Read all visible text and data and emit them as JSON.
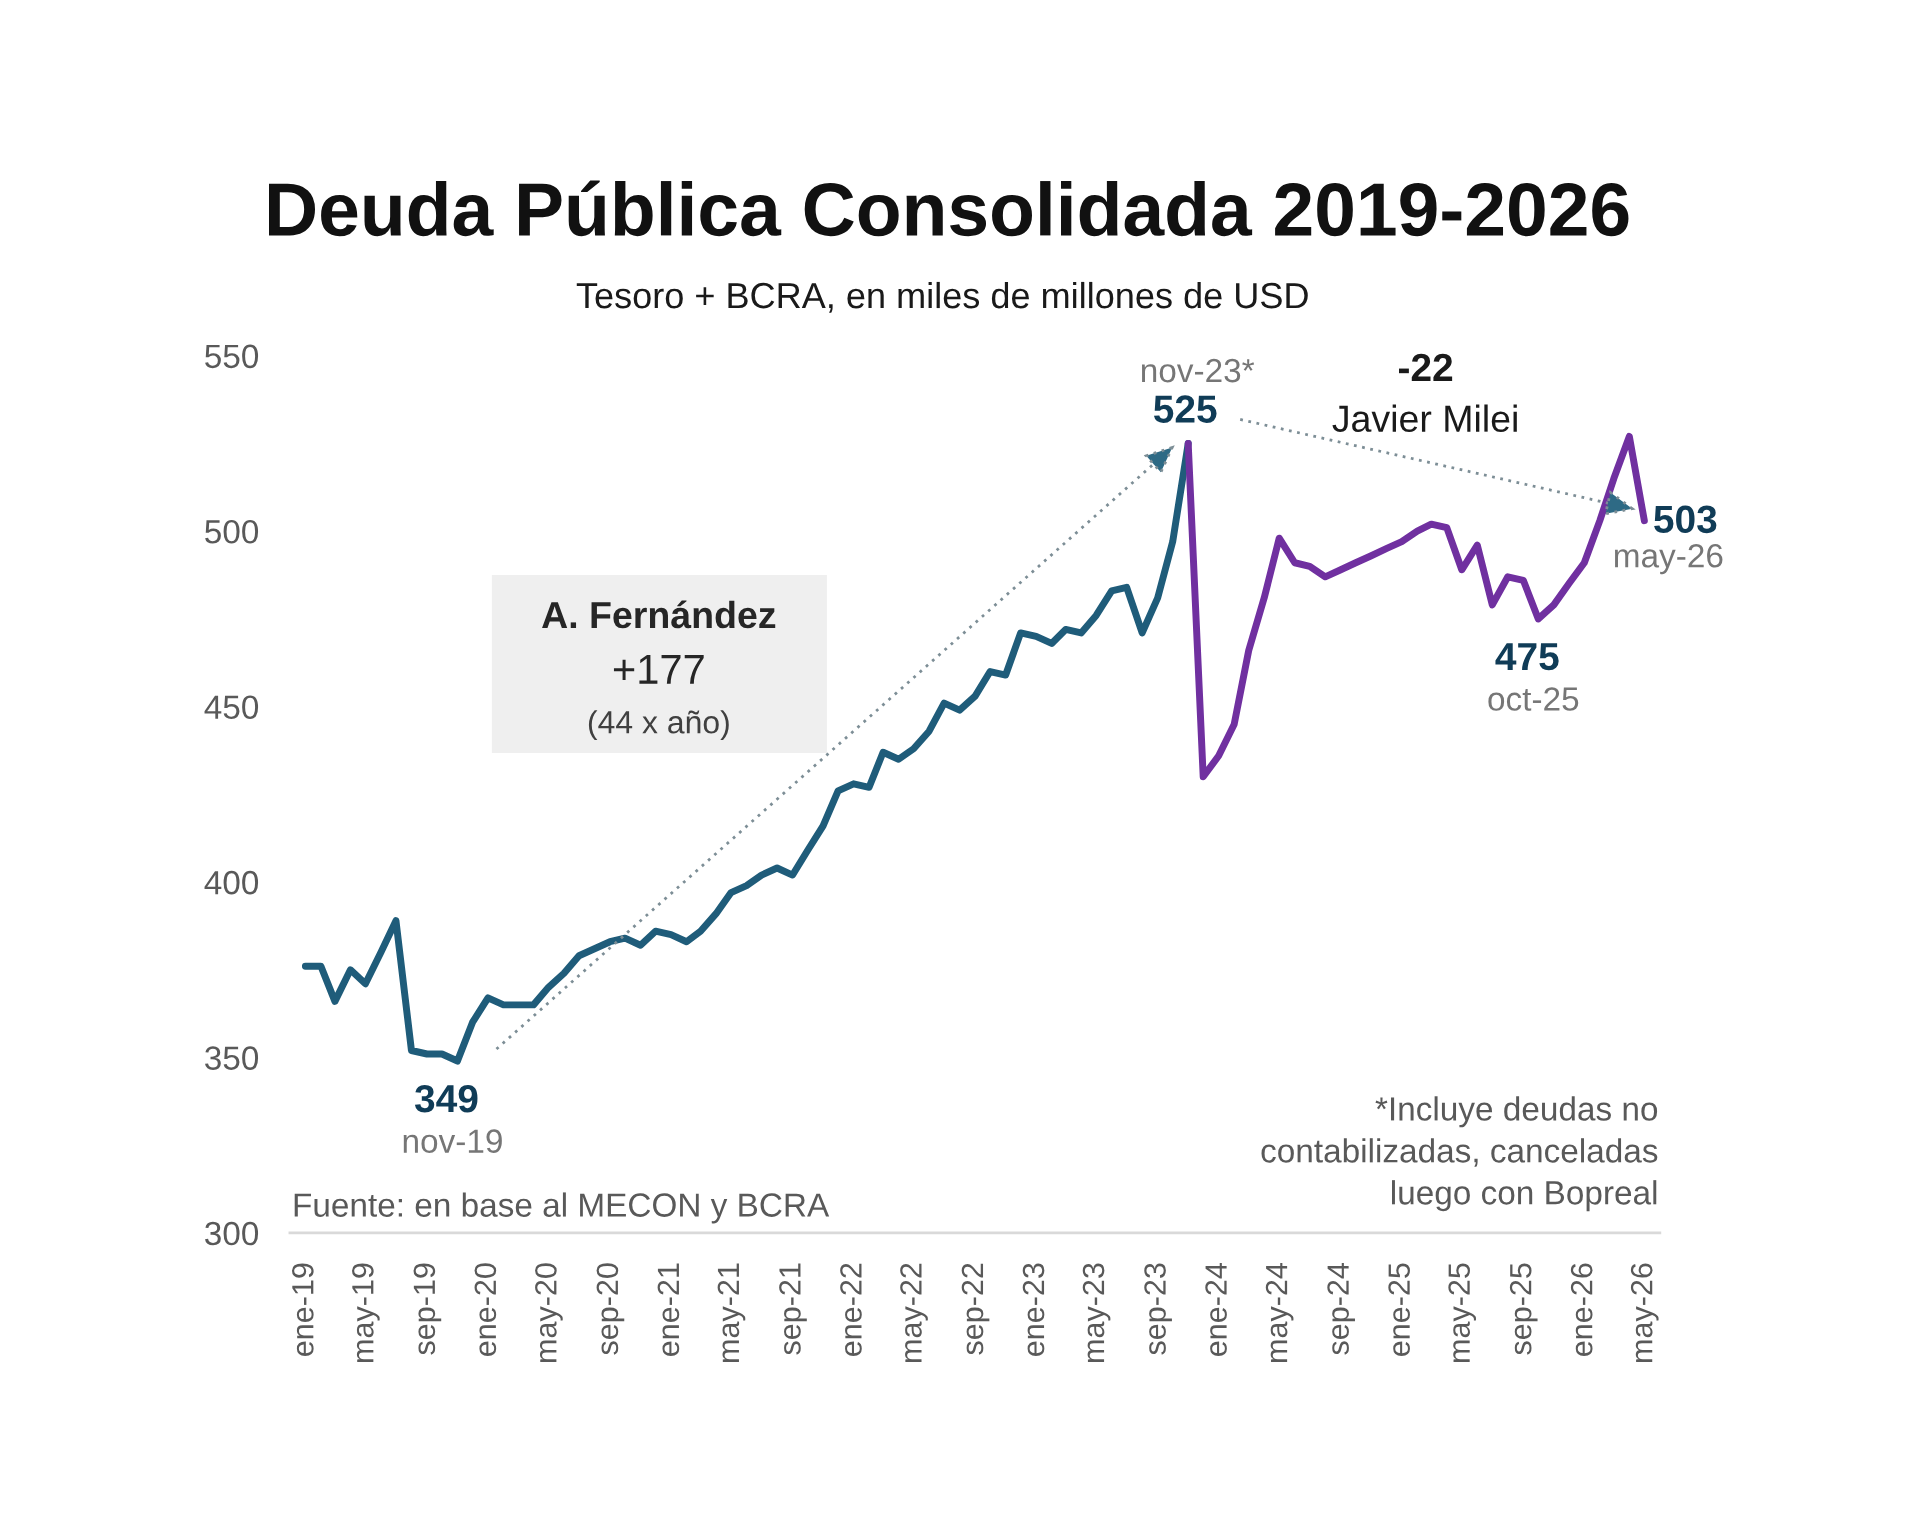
{
  "chart_data": {
    "type": "line",
    "title": "Deuda Pública Consolidada 2019-2026",
    "subtitle": "Tesoro + BCRA, en miles de millones de USD",
    "xlim": [
      "2018-12",
      "2026-06"
    ],
    "xticks": [
      {
        "value": "2019-01",
        "label": "ene-19"
      },
      {
        "value": "2019-05",
        "label": "may-19"
      },
      {
        "value": "2019-09",
        "label": "sep-19"
      },
      {
        "value": "2020-01",
        "label": "ene-20"
      },
      {
        "value": "2020-05",
        "label": "may-20"
      },
      {
        "value": "2020-09",
        "label": "sep-20"
      },
      {
        "value": "2021-01",
        "label": "ene-21"
      },
      {
        "value": "2021-05",
        "label": "may-21"
      },
      {
        "value": "2021-09",
        "label": "sep-21"
      },
      {
        "value": "2022-01",
        "label": "ene-22"
      },
      {
        "value": "2022-05",
        "label": "may-22"
      },
      {
        "value": "2022-09",
        "label": "sep-22"
      },
      {
        "value": "2023-01",
        "label": "ene-23"
      },
      {
        "value": "2023-05",
        "label": "may-23"
      },
      {
        "value": "2023-09",
        "label": "sep-23"
      },
      {
        "value": "2024-01",
        "label": "ene-24"
      },
      {
        "value": "2024-05",
        "label": "may-24"
      },
      {
        "value": "2024-09",
        "label": "sep-24"
      },
      {
        "value": "2025-01",
        "label": "ene-25"
      },
      {
        "value": "2025-05",
        "label": "may-25"
      },
      {
        "value": "2025-09",
        "label": "sep-25"
      },
      {
        "value": "2026-01",
        "label": "ene-26"
      },
      {
        "value": "2026-05",
        "label": "may-26"
      }
    ],
    "ylim": [
      300,
      550
    ],
    "yticks": [
      300,
      350,
      400,
      450,
      500,
      550
    ],
    "series": [
      {
        "color": "#1f5c7a",
        "x": [
          "2019-01",
          "2019-02",
          "2019-03",
          "2019-04",
          "2019-05",
          "2019-06",
          "2019-07",
          "2019-08",
          "2019-09",
          "2019-10",
          "2019-11",
          "2019-12",
          "2020-01",
          "2020-02",
          "2020-03",
          "2020-04",
          "2020-05",
          "2020-06",
          "2020-07",
          "2020-08",
          "2020-09",
          "2020-10",
          "2020-11",
          "2020-12",
          "2021-01",
          "2021-02",
          "2021-03",
          "2021-04",
          "2021-05",
          "2021-06",
          "2021-07",
          "2021-08",
          "2021-09",
          "2021-10",
          "2021-11",
          "2021-12",
          "2022-01",
          "2022-02",
          "2022-03",
          "2022-04",
          "2022-05",
          "2022-06",
          "2022-07",
          "2022-08",
          "2022-09",
          "2022-10",
          "2022-11",
          "2022-12",
          "2023-01",
          "2023-02",
          "2023-03",
          "2023-04",
          "2023-05",
          "2023-06",
          "2023-07",
          "2023-08",
          "2023-09",
          "2023-10",
          "2023-11"
        ],
        "values": [
          376,
          376,
          366,
          375,
          371,
          380,
          389,
          352,
          351,
          351,
          349,
          360,
          367,
          365,
          365,
          365,
          370,
          374,
          379,
          381,
          383,
          384,
          382,
          386,
          385,
          383,
          386,
          391,
          397,
          399,
          402,
          404,
          402,
          409,
          416,
          426,
          428,
          427,
          437,
          435,
          438,
          443,
          451,
          449,
          453,
          460,
          459,
          471,
          470,
          468,
          472,
          471,
          476,
          483,
          484,
          471,
          481,
          497,
          525
        ],
        "value_labels": [
          null,
          null,
          null,
          null,
          null,
          null,
          null,
          null,
          null,
          null,
          "349",
          null,
          null,
          null,
          null,
          null,
          null,
          null,
          null,
          null,
          null,
          null,
          null,
          null,
          null,
          null,
          null,
          null,
          null,
          null,
          null,
          null,
          null,
          null,
          null,
          null,
          null,
          null,
          null,
          null,
          null,
          null,
          null,
          null,
          null,
          null,
          null,
          null,
          null,
          null,
          null,
          null,
          null,
          null,
          null,
          null,
          null,
          null,
          null
        ]
      },
      {
        "color": "#7030a0",
        "x": [
          "2023-11",
          "2023-12",
          "2024-01",
          "2024-02",
          "2024-03",
          "2024-04",
          "2024-05",
          "2024-06",
          "2024-07",
          "2024-08",
          "2024-09",
          "2024-10",
          "2024-11",
          "2024-12",
          "2025-01",
          "2025-02",
          "2025-03",
          "2025-04",
          "2025-05",
          "2025-06",
          "2025-07",
          "2025-08",
          "2025-09",
          "2025-10",
          "2025-11",
          "2025-12",
          "2026-01",
          "2026-02",
          "2026-03",
          "2026-04",
          "2026-05"
        ],
        "values": [
          525,
          430,
          436,
          445,
          466,
          481,
          498,
          491,
          490,
          487,
          489,
          491,
          493,
          495,
          497,
          500,
          502,
          501,
          489,
          496,
          479,
          487,
          486,
          475,
          479,
          485,
          491,
          503,
          515,
          527,
          503
        ],
        "value_labels": [
          "525",
          null,
          null,
          null,
          null,
          null,
          null,
          null,
          null,
          null,
          null,
          null,
          null,
          null,
          null,
          null,
          null,
          null,
          null,
          null,
          null,
          null,
          null,
          "475",
          null,
          null,
          null,
          null,
          null,
          null,
          "503"
        ]
      }
    ],
    "annotations": [
      "A. Fernández",
      "+177",
      "(44 x año)",
      "-22",
      "Javier Milei",
      {
        "text": "nov-19",
        "x": "2019-11",
        "y": 349
      },
      {
        "text": "nov-23*",
        "x": "2023-11",
        "y": 525
      },
      {
        "text": "oct-25",
        "x": "2025-10",
        "y": 475
      },
      {
        "text": "may-26",
        "x": "2026-05",
        "y": 503
      },
      "*Incluye deudas no\ncontabilizadas, canceladas\nluego con Bopreal",
      "Fuente: en base al MECON y BCRA"
    ]
  }
}
